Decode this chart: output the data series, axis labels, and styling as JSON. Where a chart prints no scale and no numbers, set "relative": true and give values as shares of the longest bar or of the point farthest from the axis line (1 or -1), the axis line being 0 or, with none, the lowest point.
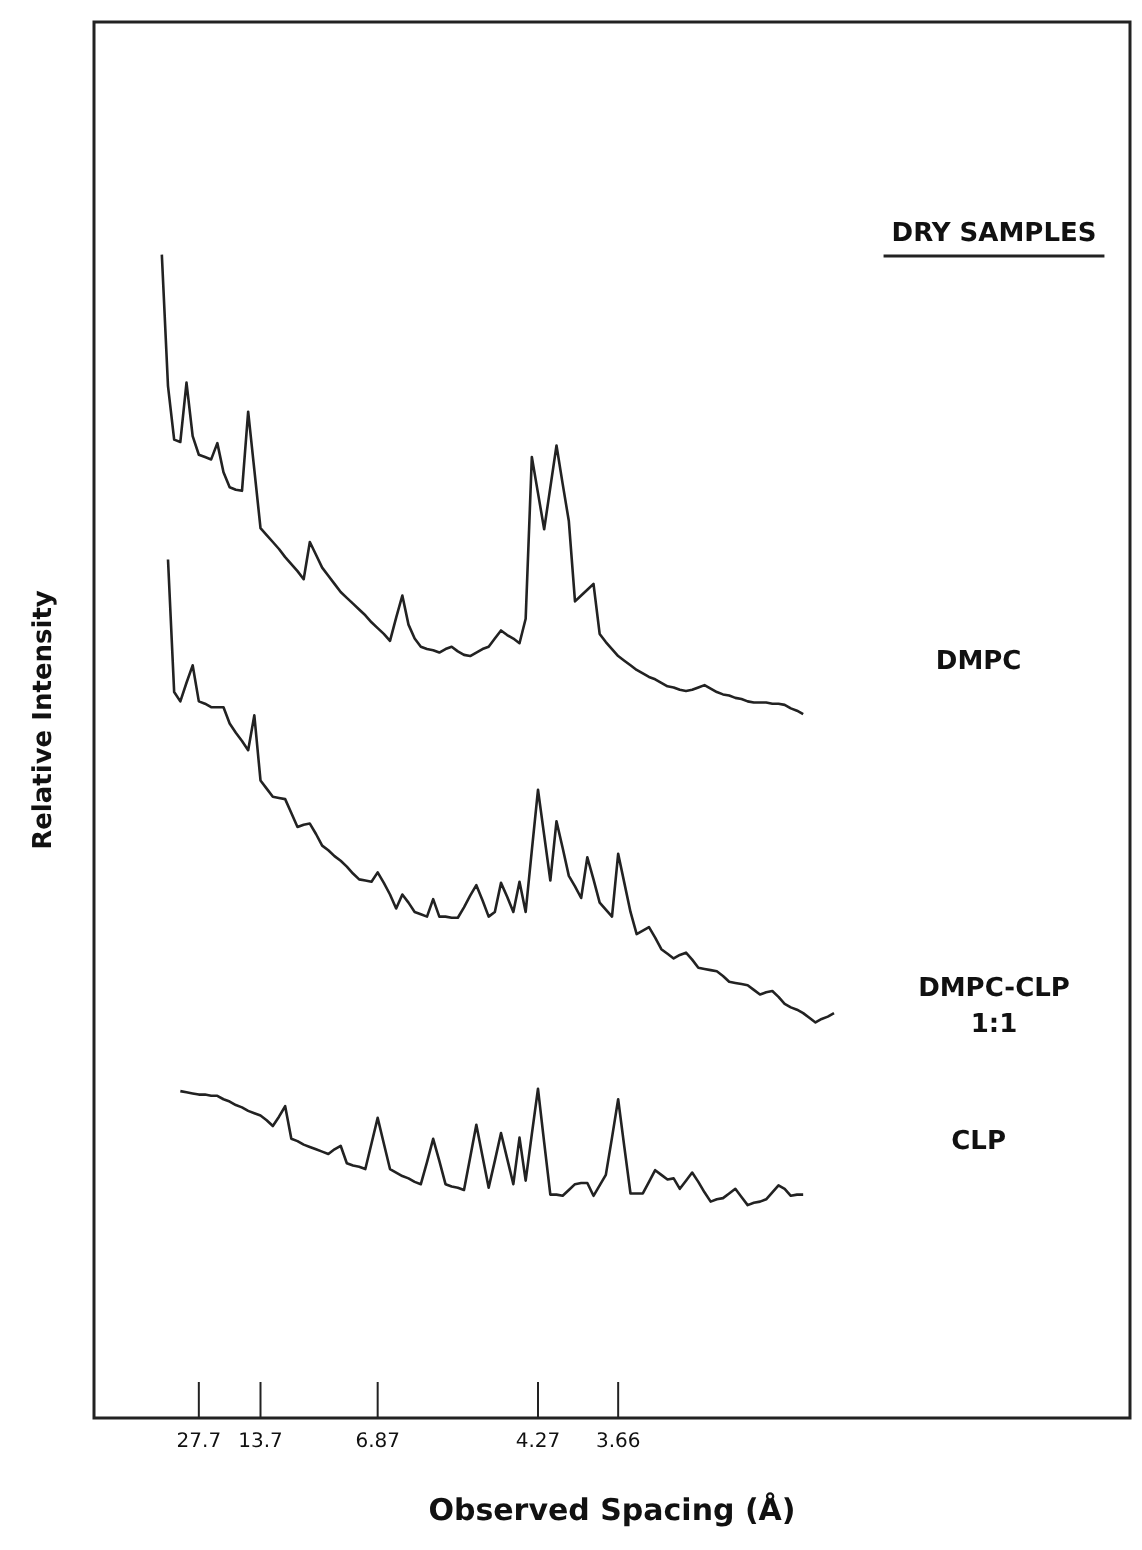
{
  "chart_data": {
    "type": "line",
    "relative": true,
    "xlabel": "Observed Spacing (Å)",
    "ylabel": "Relative Intensity",
    "annotations": [
      "DRY SAMPLES"
    ],
    "grid": false,
    "legend": false,
    "categories": [
      null,
      null,
      null,
      null,
      null,
      null,
      null,
      null,
      null,
      null,
      null,
      null,
      null,
      null,
      null,
      null,
      null,
      "27.7",
      null,
      null,
      null,
      null,
      null,
      null,
      null,
      null,
      null,
      "13.7",
      null,
      null,
      null,
      null,
      null,
      null,
      null,
      null,
      null,
      null,
      null,
      null,
      null,
      null,
      null,
      null,
      null,
      null,
      "6.87",
      null,
      null,
      null,
      null,
      null,
      null,
      null,
      null,
      null,
      null,
      null,
      null,
      null,
      null,
      null,
      null,
      null,
      null,
      null,
      null,
      null,
      null,
      null,
      null,
      null,
      "4.27",
      null,
      null,
      null,
      null,
      null,
      null,
      null,
      null,
      null,
      null,
      null,
      null,
      "3.66",
      null,
      null,
      null,
      null,
      null,
      null,
      null,
      null,
      null,
      null,
      null,
      null,
      null,
      null,
      null,
      null,
      null,
      null,
      null,
      null,
      null,
      null,
      null,
      null,
      null,
      null,
      null,
      null,
      null,
      null,
      null,
      null,
      null,
      null,
      null,
      null,
      null,
      null,
      null,
      null,
      null,
      null,
      null,
      null,
      null,
      null,
      null,
      null,
      null,
      null,
      null,
      null,
      null,
      null,
      null,
      null,
      null,
      null,
      null,
      null,
      null,
      null,
      null,
      null,
      null,
      null,
      null,
      null,
      null,
      null,
      null,
      null,
      null,
      null,
      null,
      null,
      null,
      null,
      null,
      null,
      null,
      null,
      null
    ],
    "series": [
      {
        "name": "DMPC",
        "color": "#222222",
        "values": [
          null,
          null,
          null,
          null,
          null,
          null,
          null,
          null,
          null,
          null,
          null,
          1.0,
          0.887,
          0.841,
          0.839,
          0.89,
          0.844,
          0.828,
          0.826,
          0.824,
          0.838,
          0.813,
          0.8,
          0.798,
          0.797,
          0.865,
          0.815,
          0.765,
          0.759,
          0.753,
          0.747,
          0.74,
          0.734,
          0.728,
          0.721,
          0.753,
          0.742,
          0.731,
          0.724,
          0.717,
          0.71,
          0.705,
          0.7,
          0.695,
          0.69,
          0.684,
          0.679,
          0.674,
          0.668,
          0.688,
          0.707,
          0.682,
          0.67,
          0.663,
          0.661,
          0.66,
          0.658,
          0.661,
          0.663,
          0.659,
          0.656,
          0.655,
          0.658,
          0.661,
          0.663,
          0.67,
          0.677,
          0.673,
          0.67,
          0.666,
          0.687,
          0.826,
          0.795,
          0.764,
          0.8,
          0.836,
          0.803,
          0.771,
          0.702,
          0.707,
          0.712,
          0.717,
          0.674,
          0.667,
          0.661,
          0.655,
          0.651,
          0.647,
          0.643,
          0.64,
          0.637,
          0.635,
          0.632,
          0.629,
          0.628,
          0.626,
          0.625,
          0.626,
          0.628,
          0.63,
          0.627,
          0.624,
          0.622,
          0.621,
          0.619,
          0.618,
          0.616,
          0.615,
          0.615,
          0.615,
          0.614,
          0.614,
          0.613,
          0.61,
          0.608,
          0.605,
          null,
          null,
          null,
          null,
          null,
          null,
          null,
          null,
          null,
          null,
          null,
          null,
          null,
          null,
          null,
          null,
          null,
          null,
          null,
          null,
          null,
          null,
          null,
          null,
          null,
          null,
          null,
          null,
          null,
          null,
          null,
          null,
          null,
          null,
          null,
          null,
          null,
          null,
          null,
          null,
          null,
          null,
          null,
          null,
          null,
          null,
          null,
          null,
          null,
          null,
          null,
          null,
          null
        ]
      },
      {
        "name": "DMPC-CLP 1:1",
        "color": "#222222",
        "values": [
          null,
          null,
          null,
          null,
          null,
          null,
          null,
          null,
          null,
          null,
          null,
          null,
          0.738,
          0.624,
          0.616,
          0.632,
          0.647,
          0.616,
          0.614,
          0.611,
          0.611,
          0.611,
          0.597,
          0.589,
          0.582,
          0.574,
          0.604,
          0.548,
          0.541,
          0.534,
          0.533,
          0.532,
          0.52,
          0.508,
          0.51,
          0.511,
          0.502,
          0.492,
          0.488,
          0.483,
          0.479,
          0.474,
          0.468,
          0.463,
          0.462,
          0.461,
          0.469,
          0.46,
          0.45,
          0.438,
          0.45,
          0.443,
          0.435,
          0.433,
          0.431,
          0.446,
          0.431,
          0.431,
          0.43,
          0.43,
          0.439,
          0.449,
          0.458,
          0.445,
          0.431,
          0.435,
          0.46,
          0.448,
          0.435,
          0.461,
          0.435,
          0.488,
          0.54,
          0.501,
          0.462,
          0.513,
          0.49,
          0.466,
          0.457,
          0.447,
          0.482,
          0.463,
          0.443,
          0.437,
          0.431,
          0.485,
          0.46,
          0.435,
          0.416,
          0.419,
          0.422,
          0.413,
          0.403,
          0.399,
          0.395,
          0.398,
          0.4,
          0.394,
          0.387,
          0.386,
          0.385,
          0.384,
          0.38,
          0.375,
          0.374,
          0.373,
          0.372,
          0.368,
          0.364,
          0.366,
          0.367,
          0.362,
          0.356,
          0.353,
          0.351,
          0.348,
          0.344,
          0.34,
          0.343,
          0.345,
          0.348,
          null,
          null,
          null,
          null,
          null,
          null,
          null,
          null,
          null,
          null,
          null,
          null,
          null,
          null,
          null,
          null,
          null,
          null,
          null,
          null,
          null,
          null,
          null,
          null,
          null,
          null,
          null,
          null,
          null,
          null,
          null,
          null,
          null,
          null,
          null,
          null,
          null,
          null,
          null,
          null,
          null,
          null,
          null,
          null,
          null,
          null,
          null,
          null
        ]
      },
      {
        "name": "CLP",
        "color": "#222222",
        "values": [
          null,
          null,
          null,
          null,
          null,
          null,
          null,
          null,
          null,
          null,
          null,
          null,
          null,
          null,
          0.281,
          0.28,
          0.279,
          0.278,
          0.278,
          0.277,
          0.277,
          0.274,
          0.272,
          0.269,
          0.267,
          0.264,
          0.262,
          0.26,
          0.256,
          0.251,
          0.259,
          0.268,
          0.24,
          0.238,
          0.235,
          0.233,
          0.231,
          0.229,
          0.227,
          0.231,
          0.234,
          0.219,
          0.217,
          0.216,
          0.214,
          0.236,
          0.258,
          0.236,
          0.214,
          0.211,
          0.208,
          0.206,
          0.203,
          0.201,
          0.22,
          0.24,
          0.221,
          0.201,
          0.199,
          0.198,
          0.196,
          0.224,
          0.252,
          0.225,
          0.198,
          0.221,
          0.245,
          0.223,
          0.201,
          0.241,
          0.204,
          0.244,
          0.283,
          0.237,
          0.192,
          0.192,
          0.191,
          0.196,
          0.201,
          0.202,
          0.202,
          0.191,
          0.2,
          0.209,
          0.241,
          0.274,
          0.233,
          0.193,
          0.193,
          0.193,
          0.203,
          0.213,
          0.209,
          0.205,
          0.206,
          0.197,
          0.204,
          0.211,
          0.203,
          0.194,
          0.186,
          0.188,
          0.189,
          0.193,
          0.197,
          0.19,
          0.183,
          0.185,
          0.186,
          0.188,
          0.194,
          0.2,
          0.197,
          0.191,
          0.192,
          0.192,
          null,
          null,
          null,
          null,
          null,
          null,
          null,
          null,
          null,
          null,
          null,
          null,
          null,
          null,
          null,
          null,
          null,
          null,
          null,
          null,
          null,
          null,
          null,
          null,
          null,
          null,
          null,
          null,
          null,
          null,
          null,
          null,
          null,
          null,
          null,
          null,
          null,
          null,
          null,
          null,
          null,
          null,
          null,
          null,
          null,
          null,
          null,
          null,
          null,
          null,
          null,
          null,
          null
        ]
      }
    ]
  }
}
